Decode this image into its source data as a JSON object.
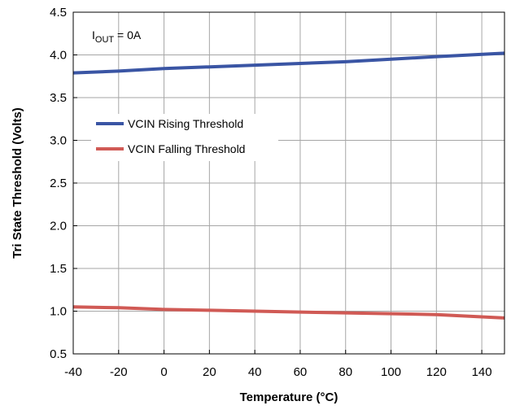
{
  "chart_data": {
    "type": "line",
    "title": "",
    "xlabel": "Temperature (°C)",
    "ylabel": "Tri State Threshold (Volts)",
    "xlim": [
      -40,
      150
    ],
    "ylim": [
      0.5,
      4.5
    ],
    "x_ticks": [
      -40,
      -20,
      0,
      20,
      40,
      60,
      80,
      100,
      120,
      140
    ],
    "y_ticks": [
      0.5,
      1.0,
      1.5,
      2.0,
      2.5,
      3.0,
      3.5,
      4.0,
      4.5
    ],
    "x_tick_labels": [
      "-40",
      "-20",
      "0",
      "20",
      "40",
      "60",
      "80",
      "100",
      "120",
      "140"
    ],
    "y_tick_labels": [
      "0.5",
      "1.0",
      "1.5",
      "2.0",
      "2.5",
      "3.0",
      "3.5",
      "4.0",
      "4.5"
    ],
    "grid": true,
    "legend_position": "middle-left",
    "annotation": {
      "main": "I",
      "subscript": "OUT",
      "suffix": " = 0A"
    },
    "series": [
      {
        "name": "VCIN Rising Threshold",
        "color": "#3a55a4",
        "x": [
          -40,
          -20,
          0,
          20,
          40,
          60,
          80,
          100,
          120,
          150
        ],
        "y": [
          3.79,
          3.81,
          3.84,
          3.86,
          3.88,
          3.9,
          3.92,
          3.95,
          3.98,
          4.02
        ]
      },
      {
        "name": "VCIN Falling Threshold",
        "color": "#d05a55",
        "x": [
          -40,
          -20,
          0,
          20,
          40,
          60,
          80,
          100,
          120,
          150
        ],
        "y": [
          1.05,
          1.04,
          1.02,
          1.01,
          1.0,
          0.99,
          0.98,
          0.97,
          0.96,
          0.92
        ]
      }
    ]
  }
}
